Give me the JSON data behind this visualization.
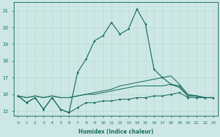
{
  "xlabel": "Humidex (Indice chaleur)",
  "background_color": "#cde8e4",
  "grid_color": "#b8d8d4",
  "line_color": "#1a6e64",
  "x_values": [
    0,
    1,
    2,
    3,
    4,
    5,
    6,
    7,
    8,
    9,
    10,
    11,
    12,
    13,
    14,
    15,
    16,
    17,
    18,
    19,
    20,
    21,
    22,
    23
  ],
  "series_main": [
    15.9,
    15.5,
    15.8,
    15.1,
    15.8,
    15.1,
    14.9,
    17.3,
    18.1,
    19.2,
    19.5,
    20.3,
    19.6,
    19.9,
    21.1,
    20.2,
    17.5,
    17.0,
    16.6,
    16.5,
    15.9,
    15.9,
    15.8,
    15.8
  ],
  "series_upper": [
    15.9,
    15.8,
    15.9,
    15.8,
    15.9,
    15.8,
    15.8,
    15.9,
    16.0,
    16.1,
    16.2,
    16.3,
    16.5,
    16.6,
    16.7,
    16.8,
    16.9,
    17.0,
    17.1,
    16.6,
    16.0,
    15.9,
    15.8,
    15.8
  ],
  "series_mid": [
    15.9,
    15.8,
    15.9,
    15.8,
    15.9,
    15.8,
    15.8,
    15.9,
    16.0,
    16.0,
    16.1,
    16.2,
    16.3,
    16.4,
    16.5,
    16.5,
    16.5,
    16.5,
    16.6,
    16.4,
    15.9,
    15.9,
    15.8,
    15.8
  ],
  "series_lower": [
    15.9,
    15.5,
    15.8,
    15.1,
    15.8,
    15.1,
    14.9,
    15.2,
    15.5,
    15.5,
    15.6,
    15.6,
    15.7,
    15.7,
    15.8,
    15.8,
    15.9,
    15.9,
    16.0,
    16.1,
    15.8,
    15.8,
    15.8,
    15.8
  ],
  "ylim": [
    14.7,
    21.5
  ],
  "xlim": [
    -0.5,
    23.5
  ],
  "yticks": [
    15,
    16,
    17,
    18,
    19,
    20,
    21
  ],
  "xticks": [
    0,
    1,
    2,
    3,
    4,
    5,
    6,
    7,
    8,
    9,
    10,
    11,
    12,
    13,
    14,
    15,
    16,
    17,
    18,
    19,
    20,
    21,
    22,
    23
  ]
}
